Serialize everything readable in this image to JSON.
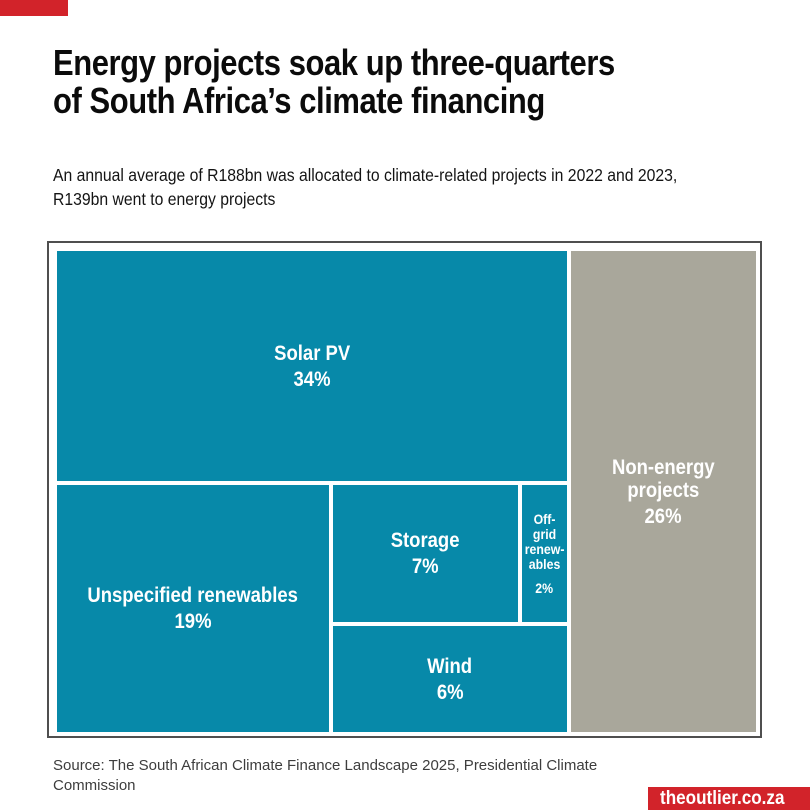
{
  "colors": {
    "accent_red": "#d2232a",
    "energy_teal": "#0789a9",
    "non_energy_gray": "#a9a79b"
  },
  "header": {
    "title": "Energy projects soak up three-quarters\nof South Africa’s climate financing",
    "subtitle": "An annual average of R188bn was allocated to climate-related projects in 2022 and 2023,\nR139bn went to energy projects"
  },
  "tiles": {
    "solar": {
      "label": "Solar PV",
      "pct": "34%"
    },
    "unspecified": {
      "label": "Unspecified renewables",
      "pct": "19%"
    },
    "storage": {
      "label": "Storage",
      "pct": "7%"
    },
    "offgrid": {
      "label": "Off-\ngrid\nrenew-\nables",
      "pct": "2%"
    },
    "wind": {
      "label": "Wind",
      "pct": "6%"
    },
    "nonenergy": {
      "label": "Non-energy\nprojects",
      "pct": "26%"
    }
  },
  "footer": {
    "source": "Source: The South African Climate Finance Landscape 2025, Presidential Climate\nCommission",
    "brand": "theoutlier.co.za"
  },
  "chart_data": {
    "type": "treemap",
    "title": "Energy projects soak up three-quarters of South Africa's climate financing",
    "subtitle": "An annual average of R188bn was allocated to climate-related projects in 2022 and 2023, R139bn went to energy projects",
    "groups": [
      {
        "name": "Energy projects",
        "color": "#0789a9",
        "children": [
          {
            "label": "Solar PV",
            "value": 34
          },
          {
            "label": "Unspecified renewables",
            "value": 19
          },
          {
            "label": "Storage",
            "value": 7
          },
          {
            "label": "Wind",
            "value": 6
          },
          {
            "label": "Off-grid renewables",
            "value": 2
          }
        ]
      },
      {
        "name": "Non-energy projects",
        "color": "#a9a79b",
        "children": [
          {
            "label": "Non-energy projects",
            "value": 26
          }
        ]
      }
    ],
    "units": "%",
    "source": "The South African Climate Finance Landscape 2025, Presidential Climate Commission"
  }
}
